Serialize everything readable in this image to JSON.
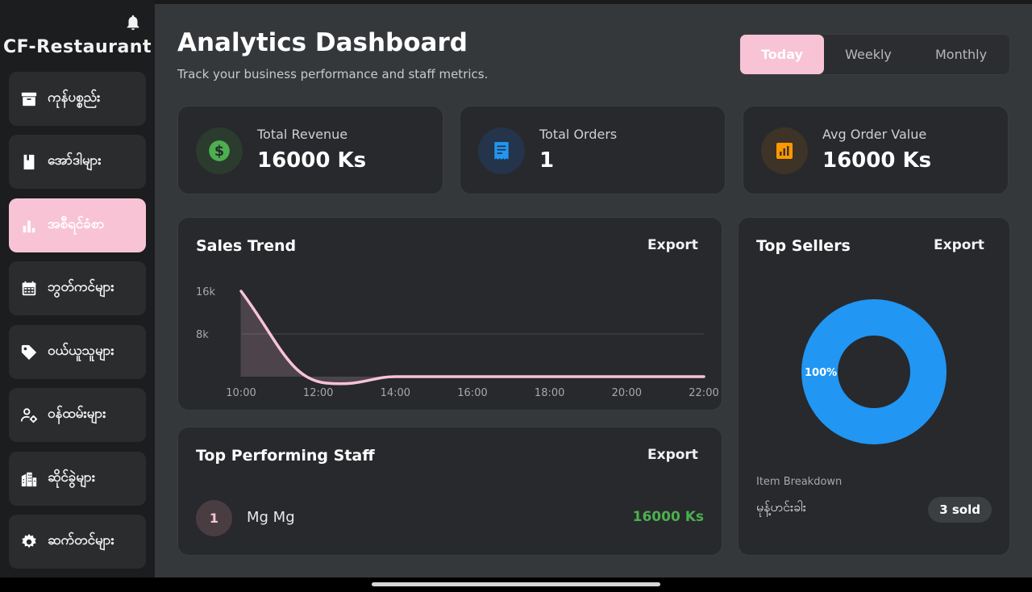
{
  "app": {
    "brand": "CF-Restaurant"
  },
  "sidebar": {
    "items": [
      {
        "label": "ကုန်ပစ္စည်း",
        "icon": "archive-icon"
      },
      {
        "label": "အော်ဒါများ",
        "icon": "book-icon"
      },
      {
        "label": "အစီရင်ခံစာ",
        "icon": "bar-chart-icon",
        "active": true
      },
      {
        "label": "ဘွတ်ကင်များ",
        "icon": "calendar-icon"
      },
      {
        "label": "ဝယ်ယူသူများ",
        "icon": "tag-icon"
      },
      {
        "label": "ဝန်ထမ်းများ",
        "icon": "staff-settings-icon"
      },
      {
        "label": "ဆိုင်ခွဲများ",
        "icon": "building-icon"
      },
      {
        "label": "ဆက်တင်များ",
        "icon": "gear-icon"
      }
    ]
  },
  "header": {
    "title": "Analytics Dashboard",
    "subtitle": "Track your business performance and staff metrics."
  },
  "period": {
    "options": [
      "Today",
      "Weekly",
      "Monthly"
    ],
    "selected": "Today"
  },
  "stats": [
    {
      "label": "Total Revenue",
      "value": "16000 Ks",
      "icon": "dollar-icon",
      "color": "#4caf50"
    },
    {
      "label": "Total Orders",
      "value": "1",
      "icon": "receipt-icon",
      "color": "#2196f3"
    },
    {
      "label": "Avg Order Value",
      "value": "16000 Ks",
      "icon": "chart-icon",
      "color": "#ff9800"
    }
  ],
  "sales_trend": {
    "title": "Sales Trend",
    "export_label": "Export"
  },
  "top_staff": {
    "title": "Top Performing Staff",
    "export_label": "Export",
    "rows": [
      {
        "rank": "1",
        "name": "Mg Mg",
        "revenue": "16000 Ks"
      }
    ]
  },
  "top_sellers": {
    "title": "Top Sellers",
    "export_label": "Export",
    "slice_label": "100%",
    "breakdown_label": "Item Breakdown",
    "items": [
      {
        "name": "မုန့်ဟင်းခါး",
        "sold": "3 sold"
      }
    ]
  },
  "colors": {
    "accent": "#f8c3d5",
    "positive": "#4caf50",
    "donut": "#2196f3"
  },
  "chart_data": [
    {
      "type": "line",
      "title": "Sales Trend",
      "x": [
        "10:00",
        "12:00",
        "14:00",
        "16:00",
        "18:00",
        "20:00",
        "22:00"
      ],
      "series": [
        {
          "name": "Sales",
          "values": [
            16000,
            0,
            0,
            0,
            0,
            0,
            0
          ]
        }
      ],
      "ylim": [
        0,
        16000
      ],
      "yticks": [
        "8k",
        "16k"
      ],
      "grid": true
    },
    {
      "type": "pie",
      "title": "Top Sellers",
      "categories": [
        "မုန့်ဟင်းခါး"
      ],
      "values": [
        100
      ],
      "labels": [
        "100%"
      ]
    }
  ]
}
